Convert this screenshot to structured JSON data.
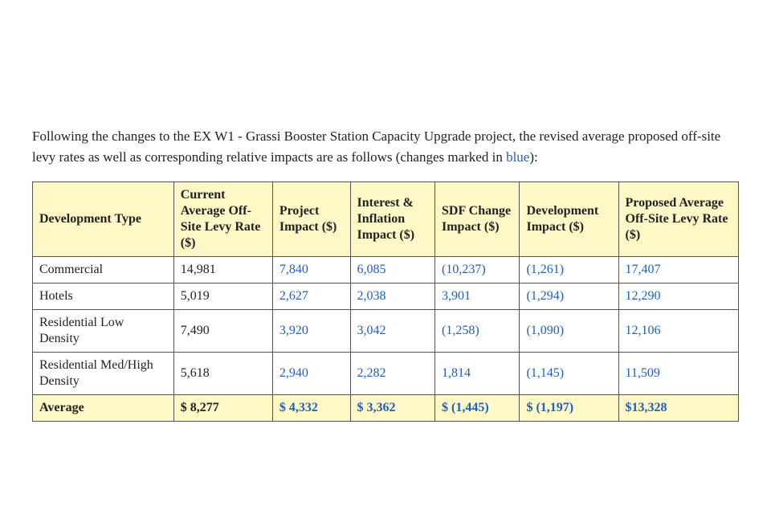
{
  "intro": {
    "line1": "Following the changes to the EX W1 - Grassi Booster Station Capacity Upgrade project, the revised average",
    "line2_prefix": "proposed off-site levy rates as well as corresponding relative impacts are as follows (changes marked in ",
    "line2_blue_word": "blue",
    "line2_suffix": "):"
  },
  "table": {
    "headers": {
      "h0": "Development Type",
      "h1": "Current Average Off-Site Levy Rate ($)",
      "h2": "Project Impact ($)",
      "h3": "Interest & Inflation Impact ($)",
      "h4": "SDF Change Impact ($)",
      "h5": "Development Impact ($)",
      "h6": "Proposed Average Off-Site Levy Rate ($)"
    },
    "rows": [
      {
        "c0": "Commercial",
        "c1": "14,981",
        "c2": "7,840",
        "c3": "6,085",
        "c4": "(10,237)",
        "c5": "(1,261)",
        "c6": "17,407"
      },
      {
        "c0": "Hotels",
        "c1": "5,019",
        "c2": "2,627",
        "c3": "2,038",
        "c4": "3,901",
        "c5": "(1,294)",
        "c6": "12,290"
      },
      {
        "c0": "Residential Low Density",
        "c1": "7,490",
        "c2": "3,920",
        "c3": "3,042",
        "c4": "(1,258)",
        "c5": "(1,090)",
        "c6": "12,106"
      },
      {
        "c0": "Residential Med/High Density",
        "c1": "5,618",
        "c2": "2,940",
        "c3": "2,282",
        "c4": "1,814",
        "c5": "(1,145)",
        "c6": "11,509"
      }
    ],
    "average": {
      "c0": "Average",
      "c1": "$ 8,277",
      "c2": "$ 4,332",
      "c3": "$ 3,362",
      "c4": "$ (1,445)",
      "c5": "$ (1,197)",
      "c6": "$13,328"
    },
    "blue_columns": [
      "c2",
      "c3",
      "c4",
      "c5",
      "c6"
    ],
    "colors": {
      "header_bg": "#fdf8c6",
      "avg_bg": "#fdf8c6",
      "border": "#555555",
      "text": "#222222",
      "changed_text": "#1f5fbf",
      "background": "#ffffff"
    },
    "font": {
      "family": "Georgia serif",
      "body_size_pt": 12,
      "header_weight": "bold"
    }
  }
}
